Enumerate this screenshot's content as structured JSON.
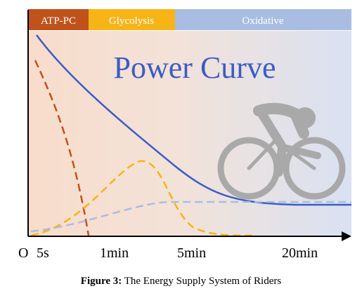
{
  "phases": [
    {
      "label": "ATP-PC",
      "color": "#c0521b"
    },
    {
      "label": "Glycolysis",
      "color": "#f6b417"
    },
    {
      "label": "Oxidative",
      "color": "#a9bde2"
    }
  ],
  "title": "Power Curve",
  "axis": {
    "origin_label": "O",
    "ticks": [
      "5s",
      "1min",
      "5min",
      "20min"
    ]
  },
  "series": {
    "power_curve": {
      "color": "#3b5cc6"
    },
    "atp_pc": {
      "color": "#c0521b"
    },
    "glycolysis": {
      "color": "#f6b417"
    },
    "oxidative": {
      "color": "#a9bde2"
    }
  },
  "icon": "cyclist-icon",
  "caption": {
    "label": "Figure 3:",
    "text": "The Energy Supply System of Riders"
  }
}
